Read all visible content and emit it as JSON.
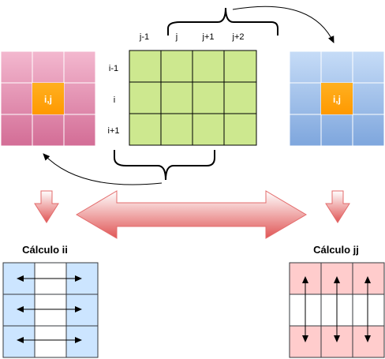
{
  "center_grid": {
    "col_labels": [
      "j-1",
      "j",
      "j+1",
      "j+2"
    ],
    "row_labels": [
      "i-1",
      "i",
      "i+1"
    ],
    "fill": "#cde88f"
  },
  "left_grid": {
    "cell_label": "i,j",
    "fill": "#d9809f",
    "highlight": "#ffa500"
  },
  "right_grid": {
    "cell_label": "i,j",
    "fill": "#8fb4e3",
    "highlight": "#ffa500"
  },
  "calc_ii": {
    "title": "Cálculo ii",
    "fill": "#cce5ff"
  },
  "calc_jj": {
    "title": "Cálculo jj",
    "fill": "#ffcccc"
  },
  "arrow_color": "#e36c6c"
}
